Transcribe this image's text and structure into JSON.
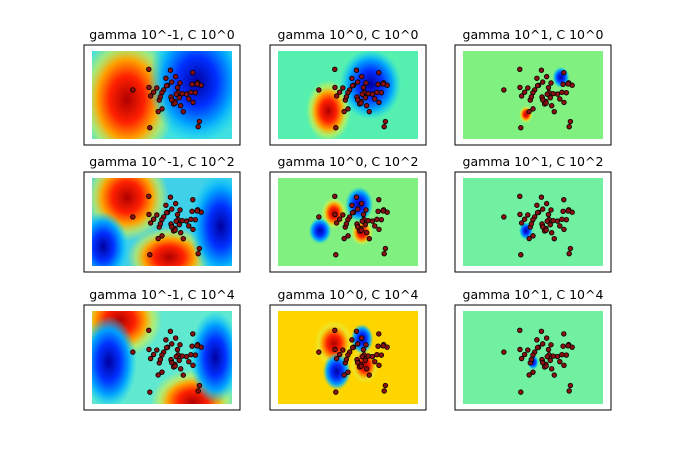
{
  "panels": [
    {
      "title": "gamma 10^-1, C 10^0"
    },
    {
      "title": "gamma 10^0, C 10^0"
    },
    {
      "title": "gamma 10^1, C 10^0"
    },
    {
      "title": "gamma 10^-1, C 10^2"
    },
    {
      "title": "gamma 10^0, C 10^2"
    },
    {
      "title": "gamma 10^1, C 10^2"
    },
    {
      "title": "gamma 10^-1, C 10^4"
    },
    {
      "title": "gamma 10^0, C 10^4"
    },
    {
      "title": "gamma 10^1, C 10^4"
    }
  ]
}
